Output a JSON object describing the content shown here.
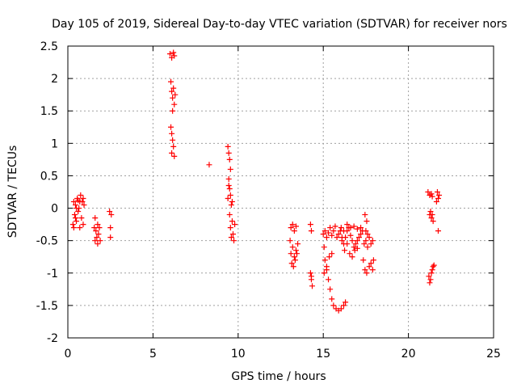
{
  "chart_data": {
    "type": "scatter",
    "title": "Day 105 of 2019, Sidereal Day-to-day VTEC variation (SDTVAR) for receiver nors",
    "xlabel": "GPS time / hours",
    "ylabel": "SDTVAR / TECUs",
    "xlim": [
      0,
      25
    ],
    "ylim": [
      -2,
      2.5
    ],
    "x_ticks": [
      0,
      5,
      10,
      15,
      20,
      25
    ],
    "x_tick_labels": [
      "0",
      "5",
      "10",
      "15",
      "20",
      "25"
    ],
    "y_ticks": [
      -2,
      -1.5,
      -1,
      -0.5,
      0,
      0.5,
      1,
      1.5,
      2,
      2.5
    ],
    "y_tick_labels": [
      "-2",
      "-1.5",
      "-1",
      "-0.5",
      "0",
      "0.5",
      "1",
      "1.5",
      "2",
      "2.5"
    ],
    "grid": true,
    "marker": "+",
    "marker_color": "#ff0000",
    "series": [
      {
        "name": "SDTVAR",
        "points": [
          [
            0.3,
            -0.25
          ],
          [
            0.35,
            0.1
          ],
          [
            0.4,
            -0.1
          ],
          [
            0.45,
            0.05
          ],
          [
            0.5,
            -0.2
          ],
          [
            0.55,
            0.15
          ],
          [
            0.6,
            -0.05
          ],
          [
            0.65,
            0.0
          ],
          [
            0.7,
            -0.3
          ],
          [
            0.75,
            0.2
          ],
          [
            0.8,
            -0.15
          ],
          [
            0.85,
            0.1
          ],
          [
            0.9,
            -0.25
          ],
          [
            0.95,
            0.05
          ],
          [
            0.35,
            -0.3
          ],
          [
            0.5,
            0.0
          ],
          [
            0.7,
            0.1
          ],
          [
            0.9,
            0.15
          ],
          [
            0.45,
            -0.15
          ],
          [
            0.6,
            0.12
          ],
          [
            1.55,
            -0.3
          ],
          [
            1.6,
            -0.5
          ],
          [
            1.65,
            -0.35
          ],
          [
            1.7,
            -0.45
          ],
          [
            1.75,
            -0.25
          ],
          [
            1.8,
            -0.4
          ],
          [
            1.85,
            -0.3
          ],
          [
            1.9,
            -0.5
          ],
          [
            1.6,
            -0.15
          ],
          [
            1.75,
            -0.55
          ],
          [
            2.45,
            -0.05
          ],
          [
            2.5,
            -0.3
          ],
          [
            2.5,
            -0.45
          ],
          [
            2.55,
            -0.1
          ],
          [
            6.0,
            2.38
          ],
          [
            6.1,
            2.32
          ],
          [
            6.2,
            2.4
          ],
          [
            6.25,
            2.35
          ],
          [
            6.05,
            1.95
          ],
          [
            6.1,
            1.8
          ],
          [
            6.15,
            1.7
          ],
          [
            6.2,
            1.85
          ],
          [
            6.25,
            1.6
          ],
          [
            6.3,
            1.75
          ],
          [
            6.15,
            1.5
          ],
          [
            6.05,
            1.25
          ],
          [
            6.1,
            1.15
          ],
          [
            6.15,
            1.05
          ],
          [
            6.2,
            0.95
          ],
          [
            6.1,
            0.85
          ],
          [
            6.25,
            0.8
          ],
          [
            8.3,
            0.67
          ],
          [
            9.4,
            0.95
          ],
          [
            9.45,
            0.85
          ],
          [
            9.5,
            0.75
          ],
          [
            9.55,
            0.6
          ],
          [
            9.45,
            0.45
          ],
          [
            9.5,
            0.3
          ],
          [
            9.55,
            0.2
          ],
          [
            9.4,
            0.15
          ],
          [
            9.6,
            0.05
          ],
          [
            9.5,
            -0.1
          ],
          [
            9.65,
            -0.2
          ],
          [
            9.55,
            -0.3
          ],
          [
            9.7,
            -0.4
          ],
          [
            9.75,
            -0.5
          ],
          [
            9.65,
            0.1
          ],
          [
            9.8,
            -0.25
          ],
          [
            9.45,
            0.35
          ],
          [
            9.6,
            -0.45
          ],
          [
            13.05,
            -0.5
          ],
          [
            13.1,
            -0.7
          ],
          [
            13.15,
            -0.85
          ],
          [
            13.2,
            -0.6
          ],
          [
            13.25,
            -0.9
          ],
          [
            13.3,
            -0.75
          ],
          [
            13.35,
            -0.8
          ],
          [
            13.4,
            -0.65
          ],
          [
            13.45,
            -0.7
          ],
          [
            13.5,
            -0.55
          ],
          [
            13.1,
            -0.3
          ],
          [
            13.2,
            -0.25
          ],
          [
            13.3,
            -0.35
          ],
          [
            13.4,
            -0.28
          ],
          [
            14.25,
            -0.25
          ],
          [
            14.3,
            -0.35
          ],
          [
            14.25,
            -1.0
          ],
          [
            14.3,
            -1.1
          ],
          [
            14.35,
            -1.2
          ],
          [
            14.3,
            -1.05
          ],
          [
            15.0,
            -0.4
          ],
          [
            15.1,
            -0.35
          ],
          [
            15.2,
            -0.45
          ],
          [
            15.3,
            -0.38
          ],
          [
            15.4,
            -0.3
          ],
          [
            15.5,
            -0.42
          ],
          [
            15.6,
            -0.35
          ],
          [
            15.7,
            -0.28
          ],
          [
            15.05,
            -0.6
          ],
          [
            15.1,
            -0.8
          ],
          [
            15.2,
            -0.95
          ],
          [
            15.3,
            -1.1
          ],
          [
            15.4,
            -1.25
          ],
          [
            15.5,
            -1.4
          ],
          [
            15.6,
            -1.5
          ],
          [
            15.75,
            -1.55
          ],
          [
            15.9,
            -1.58
          ],
          [
            16.05,
            -1.55
          ],
          [
            16.2,
            -1.5
          ],
          [
            16.3,
            -1.45
          ],
          [
            15.05,
            -1.0
          ],
          [
            15.2,
            -0.9
          ],
          [
            15.35,
            -0.75
          ],
          [
            15.5,
            -0.7
          ],
          [
            15.8,
            -0.45
          ],
          [
            15.9,
            -0.4
          ],
          [
            16.0,
            -0.35
          ],
          [
            16.1,
            -0.5
          ],
          [
            16.2,
            -0.55
          ],
          [
            16.3,
            -0.45
          ],
          [
            16.4,
            -0.35
          ],
          [
            16.5,
            -0.3
          ],
          [
            16.6,
            -0.42
          ],
          [
            16.7,
            -0.5
          ],
          [
            16.8,
            -0.6
          ],
          [
            16.9,
            -0.55
          ],
          [
            17.0,
            -0.5
          ],
          [
            17.1,
            -0.45
          ],
          [
            17.2,
            -0.4
          ],
          [
            17.3,
            -0.35
          ],
          [
            16.05,
            -0.3
          ],
          [
            16.2,
            -0.35
          ],
          [
            16.4,
            -0.25
          ],
          [
            16.6,
            -0.3
          ],
          [
            16.8,
            -0.28
          ],
          [
            17.0,
            -0.32
          ],
          [
            17.2,
            -0.3
          ],
          [
            16.1,
            -0.45
          ],
          [
            16.25,
            -0.65
          ],
          [
            16.4,
            -0.55
          ],
          [
            16.55,
            -0.7
          ],
          [
            16.7,
            -0.75
          ],
          [
            16.85,
            -0.65
          ],
          [
            17.0,
            -0.62
          ],
          [
            17.4,
            -0.55
          ],
          [
            17.5,
            -0.5
          ],
          [
            17.6,
            -0.6
          ],
          [
            17.7,
            -0.45
          ],
          [
            17.8,
            -0.55
          ],
          [
            17.9,
            -0.5
          ],
          [
            17.5,
            -0.35
          ],
          [
            17.55,
            -0.2
          ],
          [
            17.45,
            -0.1
          ],
          [
            17.6,
            -0.4
          ],
          [
            17.35,
            -0.8
          ],
          [
            17.45,
            -0.95
          ],
          [
            17.55,
            -1.0
          ],
          [
            17.7,
            -0.9
          ],
          [
            17.8,
            -0.85
          ],
          [
            17.9,
            -0.95
          ],
          [
            17.95,
            -0.8
          ],
          [
            21.15,
            0.25
          ],
          [
            21.25,
            0.2
          ],
          [
            21.35,
            0.22
          ],
          [
            21.4,
            0.18
          ],
          [
            21.3,
            -0.05
          ],
          [
            21.35,
            -0.15
          ],
          [
            21.4,
            -0.1
          ],
          [
            21.45,
            -0.2
          ],
          [
            21.25,
            -0.1
          ],
          [
            21.2,
            -1.05
          ],
          [
            21.25,
            -1.15
          ],
          [
            21.3,
            -1.1
          ],
          [
            21.35,
            -1.0
          ],
          [
            21.4,
            -0.95
          ],
          [
            21.45,
            -0.9
          ],
          [
            21.5,
            -0.88
          ],
          [
            21.65,
            0.1
          ],
          [
            21.7,
            0.25
          ],
          [
            21.75,
            0.15
          ],
          [
            21.8,
            0.2
          ],
          [
            21.75,
            -0.35
          ]
        ]
      }
    ]
  }
}
